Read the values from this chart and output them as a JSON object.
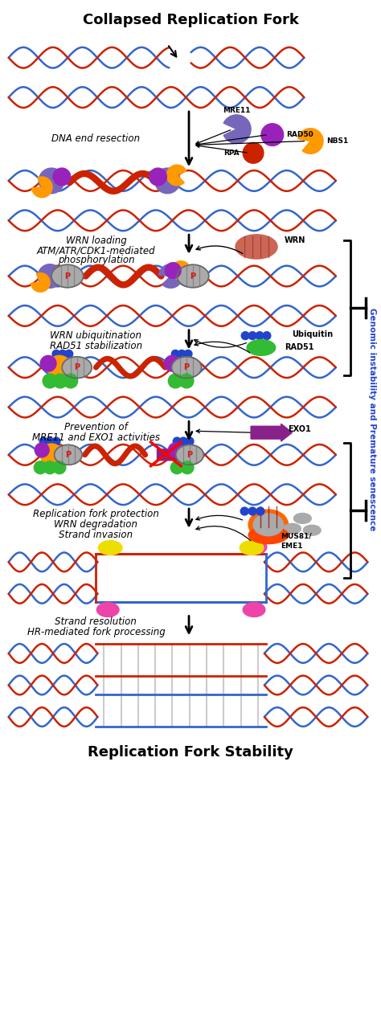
{
  "title_top": "Collapsed Replication Fork",
  "title_bottom": "Replication Fork Stability",
  "side_label": "Genomic instability and Premature senescence",
  "bg_color": "#ffffff",
  "dna_blue": "#3366CC",
  "dna_red": "#CC2200",
  "dna_gray": "#aaaaaa",
  "black": "#000000",
  "mre11_color": "#7766BB",
  "rad50_color": "#9922BB",
  "nbs1_color": "#FF9900",
  "rpa_color": "#CC2200",
  "wrn_color": "#CC6655",
  "ub_color": "#2244CC",
  "rad51_color": "#33BB33",
  "exo1_color": "#882288",
  "mus81_yellow": "#EEDD00",
  "mus81_pink": "#EE44AA",
  "orange_prot": "#FF8800",
  "purple_prot": "#8833AA",
  "gray_prot": "#AAAAAA",
  "green_prot": "#33BB22"
}
